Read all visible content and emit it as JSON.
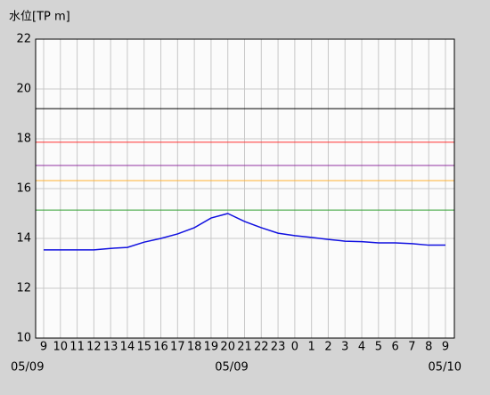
{
  "chart_data": {
    "type": "line",
    "y_label": "水位[TP m]",
    "categories": [
      "9",
      "10",
      "11",
      "12",
      "13",
      "14",
      "15",
      "16",
      "17",
      "18",
      "19",
      "20",
      "21",
      "22",
      "23",
      "0",
      "1",
      "2",
      "3",
      "4",
      "5",
      "6",
      "7",
      "8",
      "9"
    ],
    "date_labels": [
      "05/09",
      "05/09",
      "05/10"
    ],
    "series": [
      {
        "color": "#1010e0",
        "values": [
          13.54,
          13.54,
          13.54,
          13.54,
          13.6,
          13.64,
          13.85,
          14.0,
          14.18,
          14.43,
          14.82,
          15.0,
          14.68,
          14.43,
          14.21,
          14.11,
          14.04,
          13.96,
          13.89,
          13.87,
          13.82,
          13.82,
          13.79,
          13.73,
          13.73
        ]
      }
    ],
    "reference_lines": [
      {
        "value": 19.21,
        "color": "#000000"
      },
      {
        "value": 17.86,
        "color": "#ff3030"
      },
      {
        "value": 16.93,
        "color": "#9030a0"
      },
      {
        "value": 16.32,
        "color": "#ffb030"
      },
      {
        "value": 15.14,
        "color": "#30a030"
      }
    ],
    "ylim": [
      10,
      22
    ],
    "yticks": [
      10,
      12,
      14,
      16,
      18,
      20,
      22
    ],
    "grid": true
  }
}
